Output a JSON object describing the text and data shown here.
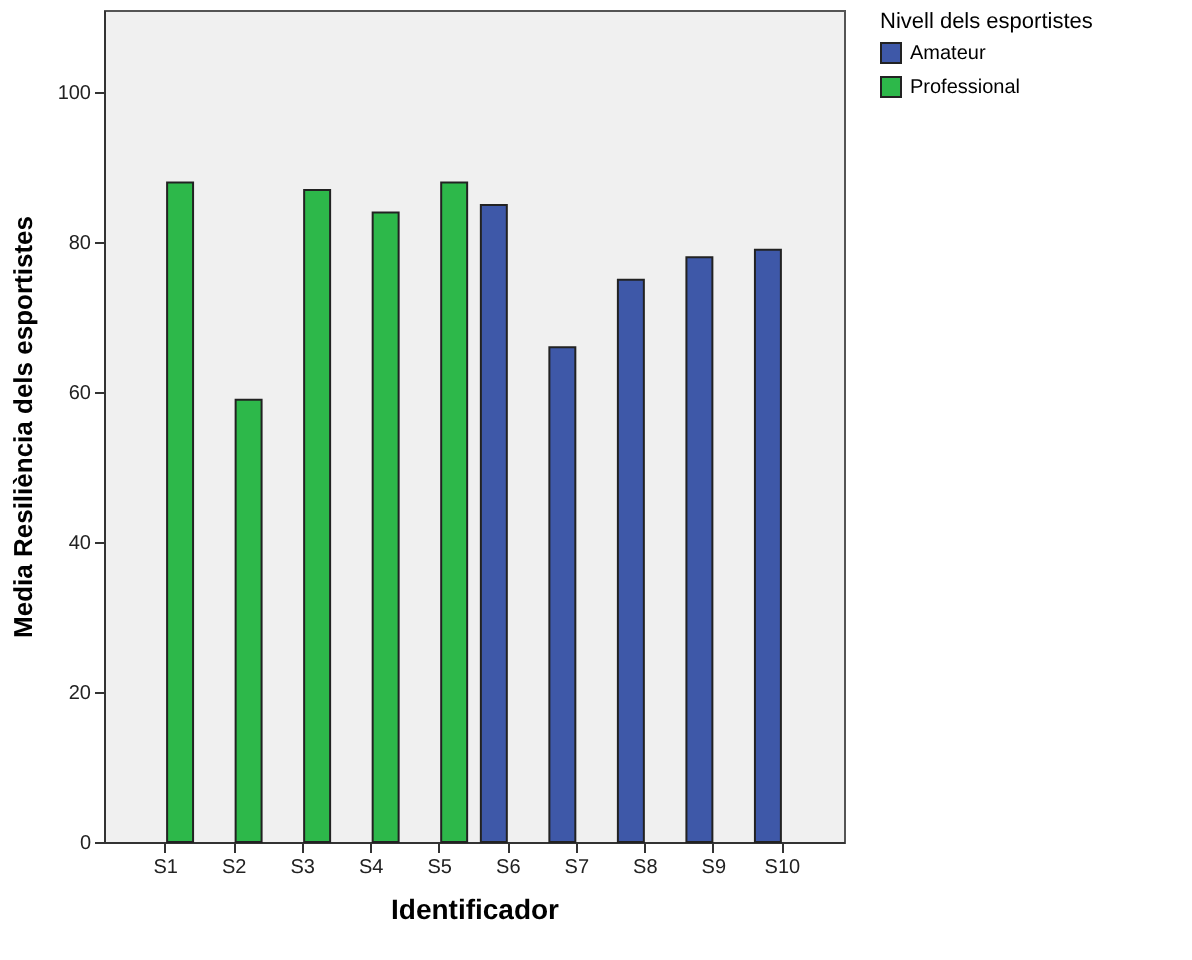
{
  "chart_data": {
    "type": "bar",
    "xlabel": "Identificador",
    "ylabel": "Media Resiliència dels esportistes",
    "legend_title": "Nivell dels esportistes",
    "categories": [
      "S1",
      "S2",
      "S3",
      "S4",
      "S5",
      "S6",
      "S7",
      "S8",
      "S9",
      "S10"
    ],
    "series": [
      {
        "name": "Amateur",
        "color": "#3e58a8",
        "values": [
          null,
          null,
          null,
          null,
          null,
          85,
          66,
          75,
          78,
          79
        ]
      },
      {
        "name": "Professional",
        "color": "#2db84a",
        "values": [
          88,
          59,
          87,
          84,
          88,
          null,
          null,
          null,
          null,
          null
        ]
      }
    ],
    "ylim": [
      0,
      111
    ],
    "yticks": [
      0,
      20,
      40,
      60,
      80,
      100
    ],
    "grid": false,
    "legend": "top right"
  }
}
